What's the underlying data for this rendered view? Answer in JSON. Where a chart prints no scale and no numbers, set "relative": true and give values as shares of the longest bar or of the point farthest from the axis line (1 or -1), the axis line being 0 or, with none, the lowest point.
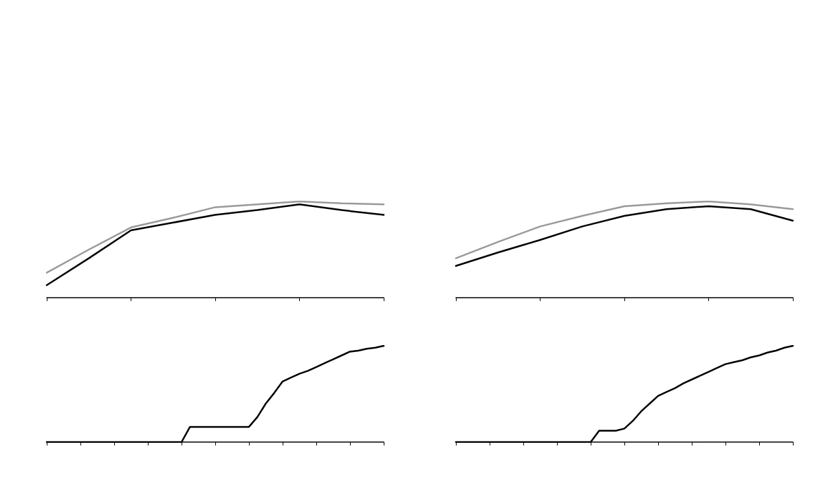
{
  "chart_data": [
    {
      "type": "line",
      "relative": true,
      "categories": [
        null,
        null,
        null,
        null,
        null,
        null,
        null,
        null,
        null
      ],
      "marker": "none",
      "line_style": "solid",
      "series": [
        {
          "color": "#999999",
          "values": [
            0.26,
            0.5,
            0.73,
            0.83,
            0.94,
            0.97,
            1,
            0.98,
            0.97
          ]
        },
        {
          "color": "#000000",
          "values": [
            0.13,
            0.41,
            0.7,
            0.78,
            0.86,
            0.91,
            0.97,
            0.91,
            0.86
          ]
        }
      ]
    },
    {
      "type": "line",
      "relative": true,
      "categories": [
        null,
        null,
        null,
        null,
        null,
        null,
        null,
        null,
        null
      ],
      "marker": "none",
      "line_style": "solid",
      "series": [
        {
          "color": "#999999",
          "values": [
            0.41,
            0.58,
            0.74,
            0.85,
            0.95,
            0.98,
            1,
            0.97,
            0.92
          ]
        },
        {
          "color": "#000000",
          "values": [
            0.33,
            0.47,
            0.6,
            0.74,
            0.85,
            0.92,
            0.95,
            0.92,
            0.8
          ]
        }
      ]
    },
    {
      "type": "line",
      "relative": true,
      "categories": [
        null,
        null,
        null,
        null,
        null,
        null,
        null,
        null,
        null,
        null,
        null,
        null,
        null,
        null,
        null,
        null,
        null,
        null,
        null,
        null,
        null,
        null,
        null,
        null,
        null,
        null,
        null,
        null,
        null,
        null,
        null,
        null,
        null,
        null,
        null,
        null,
        null,
        null,
        null,
        null,
        null
      ],
      "marker": "none",
      "line_style": "solid",
      "series": [
        {
          "color": "#000000",
          "values": [
            0,
            0,
            0,
            0,
            0,
            0,
            0,
            0,
            0,
            0,
            0,
            0,
            0,
            0,
            0,
            0,
            0,
            0.158,
            0.158,
            0.158,
            0.158,
            0.158,
            0.158,
            0.158,
            0.158,
            0.26,
            0.4,
            0.51,
            0.63,
            0.67,
            0.71,
            0.74,
            0.78,
            0.82,
            0.86,
            0.9,
            0.94,
            0.95,
            0.97,
            0.98,
            1
          ]
        }
      ]
    },
    {
      "type": "line",
      "relative": true,
      "categories": [
        null,
        null,
        null,
        null,
        null,
        null,
        null,
        null,
        null,
        null,
        null,
        null,
        null,
        null,
        null,
        null,
        null,
        null,
        null,
        null,
        null,
        null,
        null,
        null,
        null,
        null,
        null,
        null,
        null,
        null,
        null,
        null,
        null,
        null,
        null,
        null,
        null,
        null,
        null,
        null,
        null
      ],
      "marker": "none",
      "line_style": "solid",
      "series": [
        {
          "color": "#000000",
          "values": [
            0,
            0,
            0,
            0,
            0,
            0,
            0,
            0,
            0,
            0,
            0,
            0,
            0,
            0,
            0,
            0,
            0,
            0.118,
            0.118,
            0.118,
            0.14,
            0.22,
            0.32,
            0.4,
            0.48,
            0.52,
            0.56,
            0.61,
            0.65,
            0.69,
            0.73,
            0.77,
            0.81,
            0.83,
            0.85,
            0.88,
            0.9,
            0.93,
            0.95,
            0.98,
            1
          ]
        }
      ]
    }
  ]
}
